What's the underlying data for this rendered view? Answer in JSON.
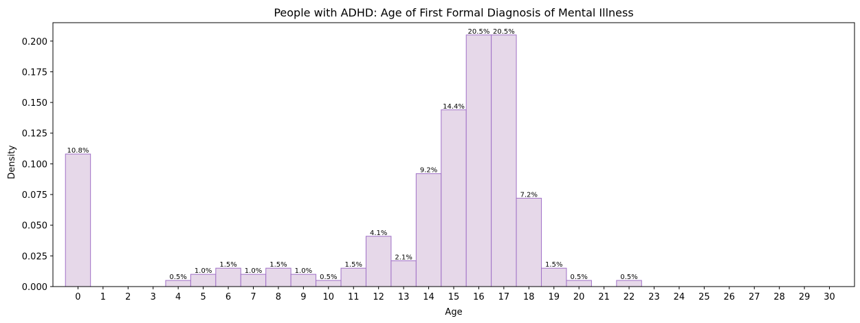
{
  "chart_data": {
    "type": "bar",
    "title": "People with ADHD: Age of First Formal Diagnosis of Mental Illness",
    "xlabel": "Age",
    "ylabel": "Density",
    "x_ticks": [
      0,
      1,
      2,
      3,
      4,
      5,
      6,
      7,
      8,
      9,
      10,
      11,
      12,
      13,
      14,
      15,
      16,
      17,
      18,
      19,
      20,
      21,
      22,
      23,
      24,
      25,
      26,
      27,
      28,
      29,
      30
    ],
    "y_ticks": [
      0.0,
      0.025,
      0.05,
      0.075,
      0.1,
      0.125,
      0.15,
      0.175,
      0.2
    ],
    "y_tick_labels": [
      "0.000",
      "0.025",
      "0.050",
      "0.075",
      "0.100",
      "0.125",
      "0.150",
      "0.175",
      "0.200"
    ],
    "xlim": [
      -1,
      31
    ],
    "ylim": [
      0,
      0.215
    ],
    "grid": false,
    "colors": {
      "bar_fill": "#e6d8e9",
      "bar_edge": "#9f6fc6"
    },
    "bars": [
      {
        "x": 0,
        "value": 0.108,
        "label": "10.8%"
      },
      {
        "x": 4,
        "value": 0.005,
        "label": "0.5%"
      },
      {
        "x": 5,
        "value": 0.01,
        "label": "1.0%"
      },
      {
        "x": 6,
        "value": 0.015,
        "label": "1.5%"
      },
      {
        "x": 7,
        "value": 0.01,
        "label": "1.0%"
      },
      {
        "x": 8,
        "value": 0.015,
        "label": "1.5%"
      },
      {
        "x": 9,
        "value": 0.01,
        "label": "1.0%"
      },
      {
        "x": 10,
        "value": 0.005,
        "label": "0.5%"
      },
      {
        "x": 11,
        "value": 0.015,
        "label": "1.5%"
      },
      {
        "x": 12,
        "value": 0.041,
        "label": "4.1%"
      },
      {
        "x": 13,
        "value": 0.021,
        "label": "2.1%"
      },
      {
        "x": 14,
        "value": 0.092,
        "label": "9.2%"
      },
      {
        "x": 15,
        "value": 0.144,
        "label": "14.4%"
      },
      {
        "x": 16,
        "value": 0.205,
        "label": "20.5%"
      },
      {
        "x": 17,
        "value": 0.205,
        "label": "20.5%"
      },
      {
        "x": 18,
        "value": 0.072,
        "label": "7.2%"
      },
      {
        "x": 19,
        "value": 0.015,
        "label": "1.5%"
      },
      {
        "x": 20,
        "value": 0.005,
        "label": "0.5%"
      },
      {
        "x": 22,
        "value": 0.005,
        "label": "0.5%"
      }
    ]
  }
}
